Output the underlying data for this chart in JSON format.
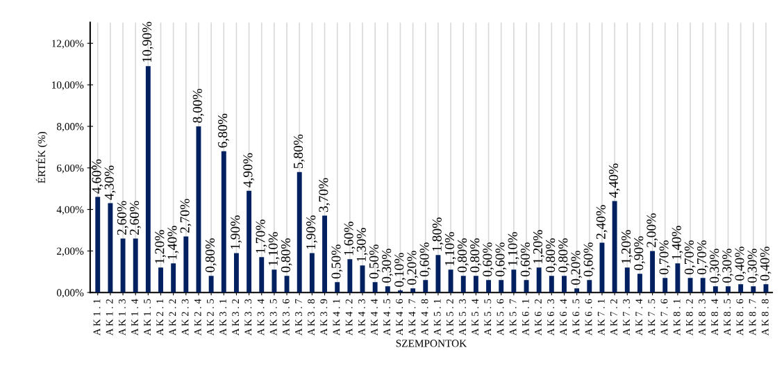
{
  "chart_data": {
    "type": "bar",
    "xlabel": "SZEMPONTOK",
    "ylabel": "ÉRTÉK (%)",
    "categories": [
      "A K 1 . 1",
      "A K 1 . 2",
      "A K 1 . 3",
      "A K 1 . 4",
      "A K 1 . 5",
      "A K 2 . 1",
      "A K 2 . 2",
      "A K 2 . 3",
      "A K 2 . 4",
      "A K 2 . 5",
      "A K 3 . 1",
      "A K 3 . 2",
      "A K 3 . 3",
      "A K 3 . 4",
      "A K 3 . 5",
      "A K 3 . 6",
      "A K 3 . 7",
      "A K 3 . 8",
      "A K 3 . 9",
      "A K 4 . 1",
      "A K 4 . 2",
      "A K 4 . 3",
      "A K 4 . 4",
      "A K 4 . 5",
      "A K 4 . 6",
      "A K 4 . 7",
      "A K 4 . 8",
      "A K 5 . 1",
      "A K 5 . 2",
      "A K 5 . 3",
      "A K 5 . 4",
      "A K 5 . 5",
      "A K 5 . 6",
      "A K 5 . 7",
      "A K 6 . 1",
      "A K 6 . 2",
      "A K 6 . 3",
      "A K 6 . 4",
      "A K 6 . 5",
      "A K 6 . 6",
      "A K 7 . 1",
      "A K 7 . 2",
      "A K 7 . 3",
      "A K 7 . 4",
      "A K 7 . 5",
      "A K 7 . 6",
      "A K 8 . 1",
      "A K 8 . 2",
      "A K 8 . 3",
      "A K 8 . 4",
      "A K 8 . 5",
      "A K 8 . 6",
      "A K 8 . 7",
      "A K 8 . 8"
    ],
    "values": [
      4.6,
      4.3,
      2.6,
      2.6,
      10.9,
      1.2,
      1.4,
      2.7,
      8.0,
      0.8,
      6.8,
      1.9,
      4.9,
      1.7,
      1.1,
      0.8,
      5.8,
      1.9,
      3.7,
      0.5,
      1.6,
      1.3,
      0.5,
      0.3,
      0.1,
      0.2,
      0.6,
      1.8,
      1.1,
      0.8,
      0.8,
      0.6,
      0.6,
      1.1,
      0.6,
      1.2,
      0.8,
      0.8,
      0.2,
      0.6,
      2.4,
      4.4,
      1.2,
      0.9,
      2.0,
      0.7,
      1.4,
      0.7,
      0.7,
      0.3,
      0.3,
      0.4,
      0.3,
      0.4
    ],
    "value_labels": [
      "4,60%",
      "4,30%",
      "2,60%",
      "2,60%",
      "10,90%",
      "1,20%",
      "1,40%",
      "2,70%",
      "8,00%",
      "0,80%",
      "6,80%",
      "1,90%",
      "4,90%",
      "1,70%",
      "1,10%",
      "0,80%",
      "5,80%",
      "1,90%",
      "3,70%",
      "0,50%",
      "1,60%",
      "1,30%",
      "0,50%",
      "0,30%",
      "0,10%",
      "0,20%",
      "0,60%",
      "1,80%",
      "1,10%",
      "0,80%",
      "0,80%",
      "0,60%",
      "0,60%",
      "1,10%",
      "0,60%",
      "1,20%",
      "0,80%",
      "0,80%",
      "0,20%",
      "0,60%",
      "2,40%",
      "4,40%",
      "1,20%",
      "0,90%",
      "2,00%",
      "0,70%",
      "1,40%",
      "0,70%",
      "0,70%",
      "0,30%",
      "0,30%",
      "0,40%",
      "0,30%",
      "0,40%"
    ],
    "color": "#002060",
    "ylim": [
      0,
      13
    ],
    "yticks": [
      {
        "value": 0,
        "label": "0,00%"
      },
      {
        "value": 2,
        "label": "2,00%"
      },
      {
        "value": 4,
        "label": "4,00%"
      },
      {
        "value": 6,
        "label": "6,00%"
      },
      {
        "value": 8,
        "label": "8,00%"
      },
      {
        "value": 10,
        "label": "10,00%"
      },
      {
        "value": 12,
        "label": "12,00%"
      }
    ],
    "grid": "x",
    "legend": false
  }
}
